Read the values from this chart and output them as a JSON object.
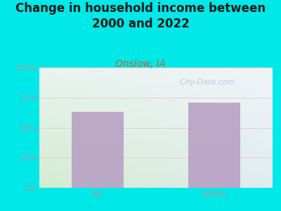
{
  "title": "Change in household income between\n2000 and 2022",
  "subtitle": "Onslow, IA",
  "categories": [
    "All",
    "White"
  ],
  "values": [
    63,
    71
  ],
  "bar_color": "#b89ec4",
  "title_fontsize": 12,
  "subtitle_fontsize": 10,
  "subtitle_color": "#c0642d",
  "tick_color": "#a0a0a0",
  "background_outer": "#00e8e8",
  "bg_color_topleft": "#e8f0f0",
  "bg_color_topright": "#dce8f0",
  "bg_color_bottomleft": "#d4ecd0",
  "bg_color_bottomright": "#e0ecf0",
  "ylim": [
    0,
    100
  ],
  "yticks": [
    0,
    25,
    50,
    75,
    100
  ],
  "ytick_labels": [
    "0%",
    "25%",
    "50%",
    "75%",
    "100%"
  ],
  "watermark": "City-Data.com"
}
